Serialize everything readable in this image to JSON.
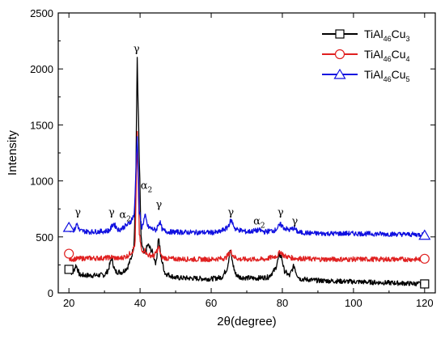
{
  "chart_data": {
    "type": "line",
    "title": "",
    "xlabel": "2θ(degree)",
    "ylabel": "Intensity",
    "xlim": [
      17,
      123
    ],
    "ylim": [
      0,
      2500
    ],
    "xticks": [
      20,
      40,
      60,
      80,
      100,
      120
    ],
    "yticks": [
      0,
      500,
      1000,
      1500,
      2000,
      2500
    ],
    "grid": false,
    "legend_position": "top-right",
    "series": [
      {
        "name_parts": {
          "base": "TiAl",
          "sub1": "46",
          "mid": "Cu",
          "sub2": "3"
        },
        "color": "#000000",
        "marker": "square",
        "baseline": 120,
        "x": [
          20,
          21,
          22,
          23,
          26,
          30,
          31,
          32,
          33,
          35,
          36.5,
          37.5,
          38.3,
          38.8,
          39.2,
          39.7,
          40.3,
          41.2,
          42.2,
          43.5,
          44.5,
          45.2,
          45.8,
          47,
          50,
          55,
          60,
          63,
          64.5,
          65.4,
          66,
          66.8,
          68,
          72,
          76,
          78,
          79.2,
          79.8,
          80.5,
          82,
          82.8,
          83.3,
          84,
          85,
          90,
          100,
          110,
          120
        ],
        "values": [
          220,
          170,
          250,
          160,
          155,
          160,
          200,
          310,
          190,
          185,
          230,
          310,
          430,
          980,
          2100,
          1300,
          460,
          340,
          430,
          360,
          260,
          500,
          330,
          175,
          135,
          130,
          125,
          140,
          220,
          390,
          270,
          170,
          140,
          130,
          140,
          210,
          340,
          320,
          200,
          150,
          210,
          245,
          170,
          125,
          110,
          100,
          90,
          80
        ]
      },
      {
        "name_parts": {
          "base": "TiAl",
          "sub1": "46",
          "mid": "Cu",
          "sub2": "4"
        },
        "color": "#e02020",
        "marker": "circle",
        "baseline": 300,
        "x": [
          20,
          25,
          30,
          32,
          34,
          36.5,
          38,
          38.6,
          39.2,
          39.8,
          40.5,
          41.2,
          42,
          44,
          45.3,
          46,
          48,
          55,
          60,
          64,
          65.5,
          66.5,
          68,
          75,
          78.5,
          79.5,
          80.5,
          83,
          90,
          100,
          110,
          120
        ],
        "values": [
          300,
          310,
          310,
          320,
          305,
          330,
          380,
          440,
          1400,
          520,
          360,
          390,
          340,
          330,
          410,
          320,
          305,
          300,
          300,
          310,
          370,
          320,
          300,
          300,
          330,
          370,
          330,
          310,
          300,
          300,
          300,
          300
        ]
      },
      {
        "name_parts": {
          "base": "TiAl",
          "sub1": "46",
          "mid": "Cu",
          "sub2": "5"
        },
        "color": "#1010e0",
        "marker": "triangle",
        "baseline": 540,
        "x": [
          20,
          21.5,
          22.3,
          23,
          26,
          30,
          31.5,
          32.5,
          34,
          36,
          37,
          38.4,
          39.2,
          39.8,
          40.5,
          41.4,
          42.2,
          43.5,
          44.5,
          45.5,
          46.3,
          48,
          55,
          62,
          64.5,
          65.6,
          66.8,
          70,
          73.5,
          75,
          78,
          79.5,
          80.5,
          82,
          83.2,
          84.5,
          90,
          100,
          110,
          120
        ],
        "values": [
          570,
          560,
          620,
          555,
          545,
          550,
          560,
          620,
          560,
          600,
          620,
          700,
          1430,
          720,
          580,
          690,
          590,
          570,
          560,
          640,
          560,
          545,
          540,
          540,
          580,
          650,
          570,
          545,
          560,
          545,
          560,
          610,
          580,
          560,
          580,
          540,
          530,
          530,
          525,
          520
        ]
      }
    ],
    "markers": [
      {
        "series": 0,
        "points": [
          [
            20,
            210
          ],
          [
            120,
            80
          ]
        ]
      },
      {
        "series": 1,
        "points": [
          [
            20,
            350
          ],
          [
            120,
            305
          ]
        ]
      },
      {
        "series": 2,
        "points": [
          [
            20,
            585
          ],
          [
            120,
            515
          ]
        ]
      }
    ],
    "annotations": [
      {
        "text": "γ",
        "sub": "",
        "x": 22.5,
        "y": 690
      },
      {
        "text": "γ",
        "sub": "",
        "x": 32,
        "y": 690
      },
      {
        "text": "α",
        "sub": "2",
        "x": 35.8,
        "y": 670
      },
      {
        "text": "γ",
        "sub": "",
        "x": 39,
        "y": 2150
      },
      {
        "text": "α",
        "sub": "2",
        "x": 41.8,
        "y": 930
      },
      {
        "text": "γ",
        "sub": "",
        "x": 45.3,
        "y": 760
      },
      {
        "text": "γ",
        "sub": "",
        "x": 65.5,
        "y": 690
      },
      {
        "text": "α",
        "sub": "2",
        "x": 73.5,
        "y": 610
      },
      {
        "text": "γ",
        "sub": "",
        "x": 79.5,
        "y": 690
      },
      {
        "text": "γ",
        "sub": "",
        "x": 83.5,
        "y": 610
      }
    ]
  }
}
